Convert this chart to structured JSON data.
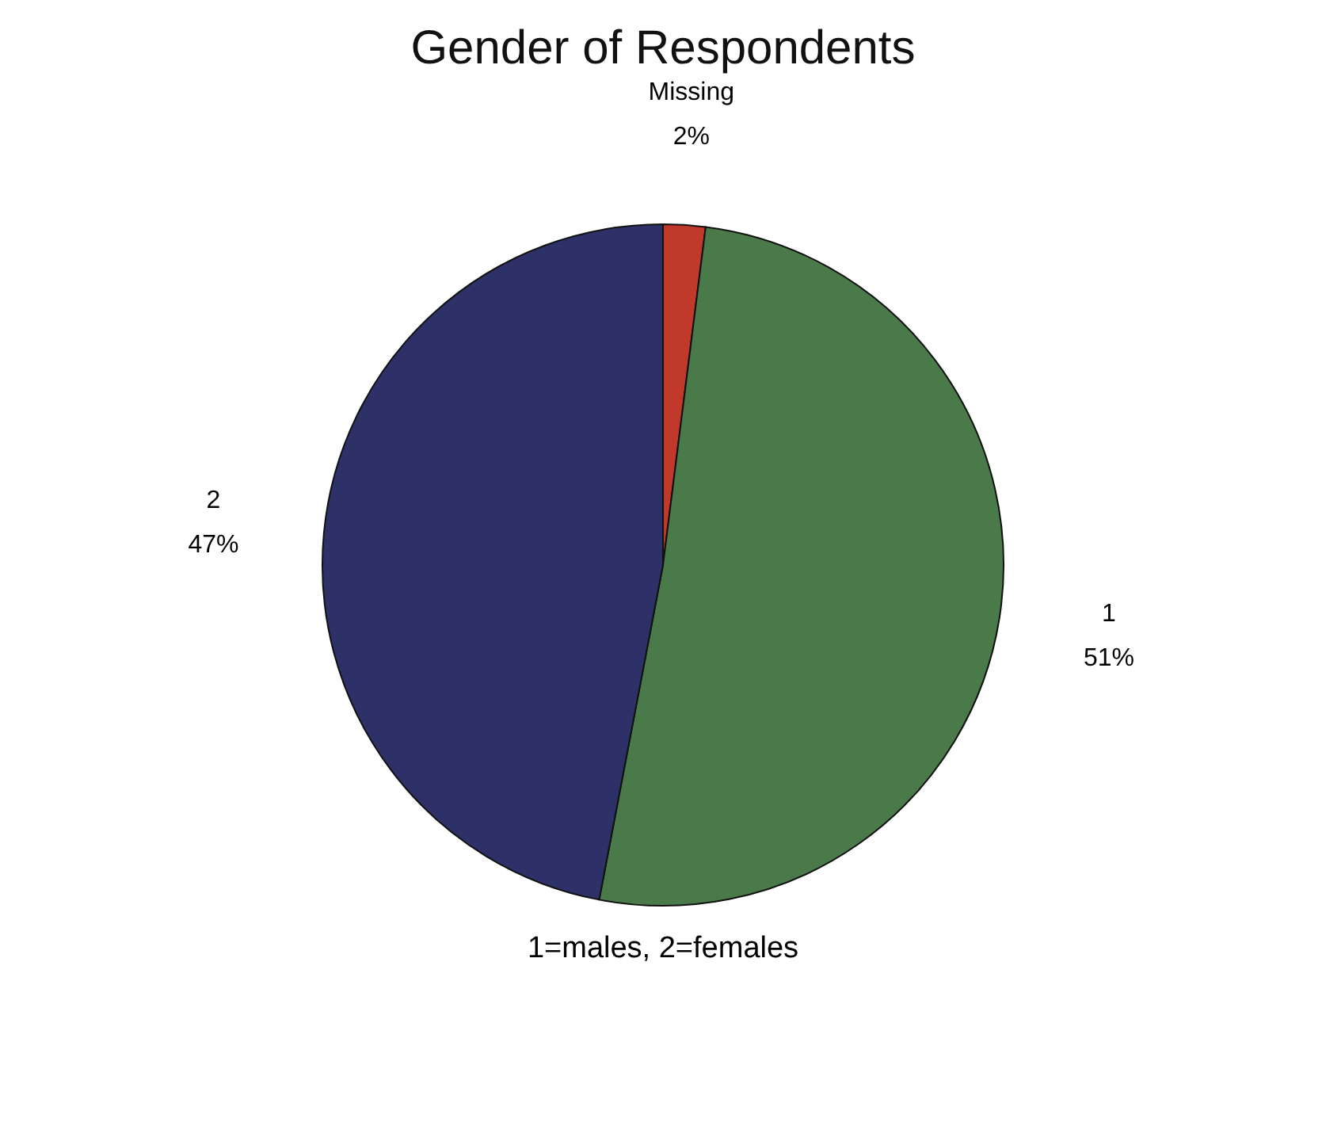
{
  "chart_data": {
    "type": "pie",
    "title": "Gender of Respondents",
    "categories": [
      "Missing",
      "1",
      "2"
    ],
    "values": [
      2,
      51,
      47
    ],
    "colors": [
      "#c0392b",
      "#4a7a4a",
      "#2e3168"
    ],
    "value_labels": [
      "2%",
      "51%",
      "47%"
    ],
    "legend": false,
    "annotations": [
      "1=males, 2=females"
    ]
  }
}
